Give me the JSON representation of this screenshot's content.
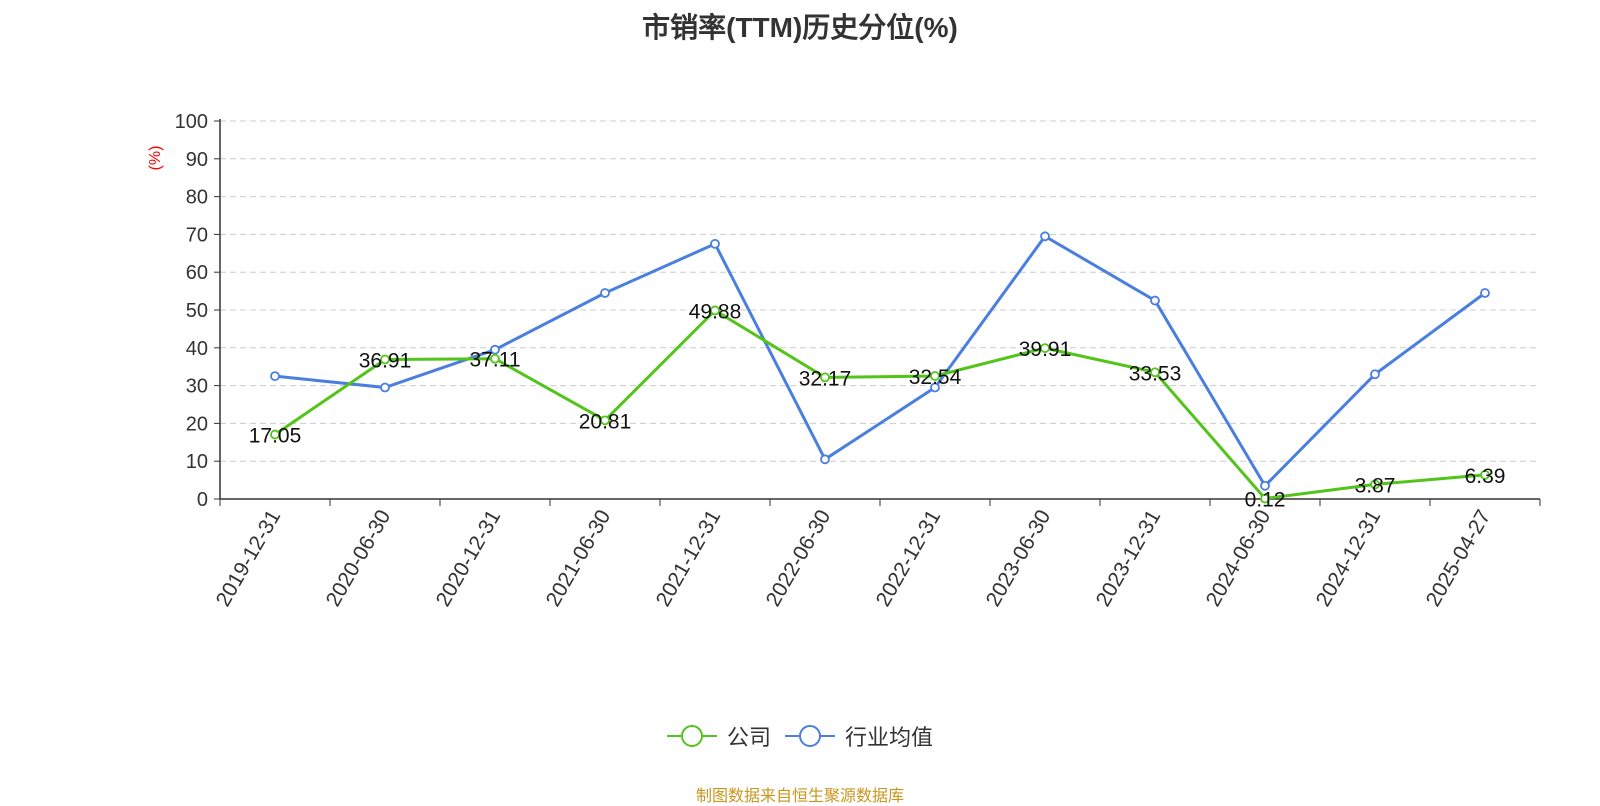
{
  "title": "市销率(TTM)历史分位(%)",
  "source": "制图数据来自恒生聚源数据库",
  "chart_data": {
    "type": "line",
    "title": "市销率(TTM)历史分位(%)",
    "ylabel": "(%)",
    "ylim": [
      0,
      100
    ],
    "yticks": [
      0,
      10,
      20,
      30,
      40,
      50,
      60,
      70,
      80,
      90,
      100
    ],
    "grid": true,
    "legend_position": "bottom",
    "categories": [
      "2019-12-31",
      "2020-06-30",
      "2020-12-31",
      "2021-06-30",
      "2021-12-31",
      "2022-06-30",
      "2022-12-31",
      "2023-06-30",
      "2023-12-31",
      "2024-06-30",
      "2024-12-31",
      "2025-04-27"
    ],
    "series": [
      {
        "name": "公司",
        "color": "#52c41a",
        "show_labels": true,
        "values": [
          17.05,
          36.91,
          37.11,
          20.81,
          49.88,
          32.17,
          32.54,
          39.91,
          33.53,
          0.12,
          3.87,
          6.39
        ]
      },
      {
        "name": "行业均值",
        "color": "#4a7fe0",
        "show_labels": false,
        "values": [
          32.5,
          29.5,
          39.5,
          54.5,
          67.5,
          10.5,
          29.5,
          69.5,
          52.5,
          3.5,
          33.0,
          54.5
        ]
      }
    ]
  }
}
